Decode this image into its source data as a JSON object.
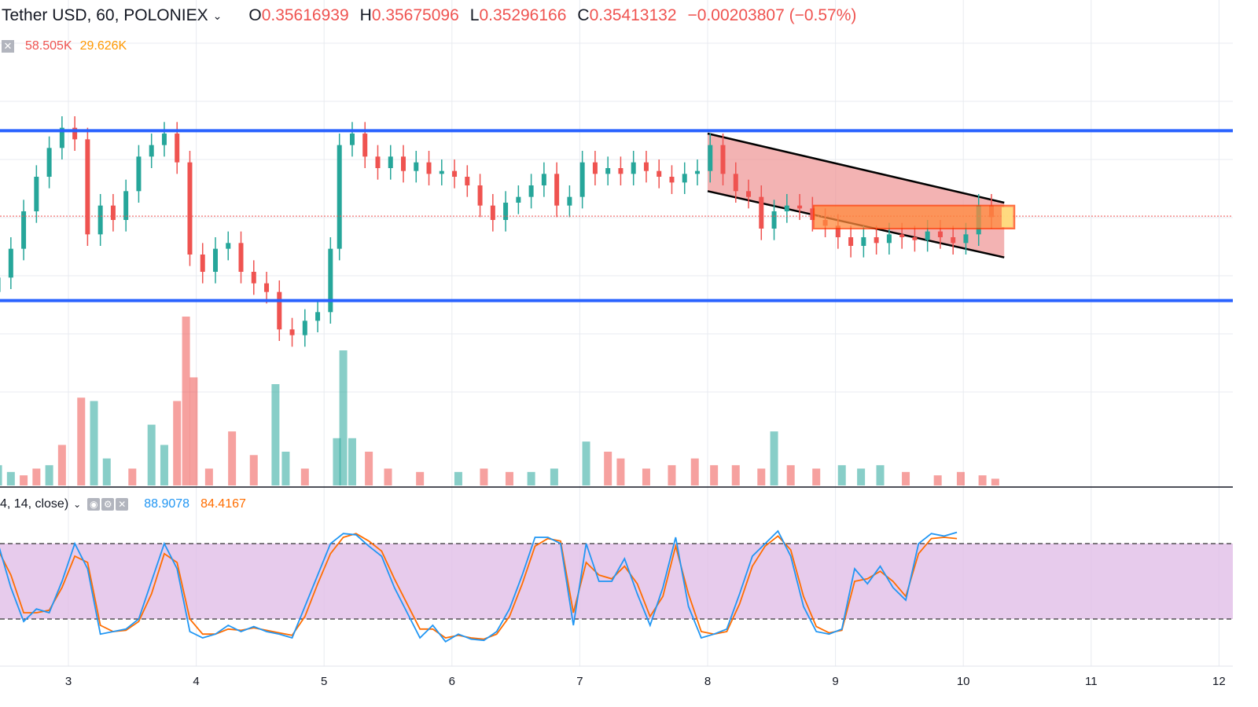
{
  "header": {
    "symbol": "Tether USD, 60, POLONIEX",
    "open_label": "O",
    "open": "0.35616939",
    "high_label": "H",
    "high": "0.35675096",
    "low_label": "L",
    "low": "0.35296166",
    "close_label": "C",
    "close": "0.35413132",
    "change": "−0.00203807 (−0.57%)"
  },
  "volume_legend": {
    "v1": "58.505K",
    "v2": "29.626K"
  },
  "indicator_legend": {
    "params": "4, 14, close)",
    "k": "88.9078",
    "d": "84.4167"
  },
  "colors": {
    "up": "#26a69a",
    "down": "#ef5350",
    "level": "#2962ff",
    "channel_fill": "#ef9a9a",
    "zone": "#ff8a3d",
    "stoch_band": "#e1bee7",
    "k_line": "#2196f3",
    "d_line": "#ff6d00"
  },
  "chart_data": {
    "type": "candlestick",
    "x_ticks": [
      "3",
      "4",
      "5",
      "6",
      "7",
      "8",
      "9",
      "10",
      "11",
      "12"
    ],
    "price_range": [
      0.348,
      0.36
    ],
    "support_level": 0.3512,
    "resistance_level": 0.3571,
    "last_close": 0.35413132,
    "stoch_levels": [
      80,
      20
    ],
    "stoch_k_last": 88.9078,
    "stoch_d_last": 84.4167,
    "candles": [
      [
        2.45,
        0.3515,
        0.352
      ],
      [
        2.55,
        0.352,
        0.353
      ],
      [
        2.65,
        0.353,
        0.3543
      ],
      [
        2.75,
        0.3543,
        0.3555
      ],
      [
        2.85,
        0.3555,
        0.3565
      ],
      [
        2.95,
        0.3565,
        0.3572
      ],
      [
        3.05,
        0.3572,
        0.3568
      ],
      [
        3.15,
        0.3568,
        0.3535
      ],
      [
        3.25,
        0.3535,
        0.3545
      ],
      [
        3.35,
        0.3545,
        0.354
      ],
      [
        3.45,
        0.354,
        0.355
      ],
      [
        3.55,
        0.355,
        0.3562
      ],
      [
        3.65,
        0.3562,
        0.3566
      ],
      [
        3.75,
        0.3566,
        0.357
      ],
      [
        3.85,
        0.357,
        0.356
      ],
      [
        3.95,
        0.356,
        0.3528
      ],
      [
        4.05,
        0.3528,
        0.3522
      ],
      [
        4.15,
        0.3522,
        0.353
      ],
      [
        4.25,
        0.353,
        0.3532
      ],
      [
        4.35,
        0.3532,
        0.3522
      ],
      [
        4.45,
        0.3522,
        0.3518
      ],
      [
        4.55,
        0.3518,
        0.3515
      ],
      [
        4.65,
        0.3515,
        0.3502
      ],
      [
        4.75,
        0.3502,
        0.35
      ],
      [
        4.85,
        0.35,
        0.3505
      ],
      [
        4.95,
        0.3505,
        0.3508
      ],
      [
        5.05,
        0.3508,
        0.353
      ],
      [
        5.12,
        0.353,
        0.3566
      ],
      [
        5.22,
        0.3566,
        0.357
      ],
      [
        5.32,
        0.357,
        0.3562
      ],
      [
        5.42,
        0.3562,
        0.3558
      ],
      [
        5.52,
        0.3558,
        0.3562
      ],
      [
        5.62,
        0.3562,
        0.3557
      ],
      [
        5.72,
        0.3557,
        0.356
      ],
      [
        5.82,
        0.356,
        0.3556
      ],
      [
        5.92,
        0.3556,
        0.3557
      ],
      [
        6.02,
        0.3557,
        0.3555
      ],
      [
        6.12,
        0.3555,
        0.3552
      ],
      [
        6.22,
        0.3552,
        0.3545
      ],
      [
        6.32,
        0.3545,
        0.354
      ],
      [
        6.42,
        0.354,
        0.3546
      ],
      [
        6.52,
        0.3546,
        0.3548
      ],
      [
        6.62,
        0.3548,
        0.3552
      ],
      [
        6.72,
        0.3552,
        0.3556
      ],
      [
        6.82,
        0.3556,
        0.3545
      ],
      [
        6.92,
        0.3545,
        0.3548
      ],
      [
        7.02,
        0.3548,
        0.356
      ],
      [
        7.12,
        0.356,
        0.3556
      ],
      [
        7.22,
        0.3556,
        0.3558
      ],
      [
        7.32,
        0.3558,
        0.3556
      ],
      [
        7.42,
        0.3556,
        0.356
      ],
      [
        7.52,
        0.356,
        0.3557
      ],
      [
        7.62,
        0.3557,
        0.3555
      ],
      [
        7.72,
        0.3555,
        0.3553
      ],
      [
        7.82,
        0.3553,
        0.3556
      ],
      [
        7.92,
        0.3556,
        0.3557
      ],
      [
        8.02,
        0.3557,
        0.3566
      ],
      [
        8.12,
        0.3566,
        0.3556
      ],
      [
        8.22,
        0.3556,
        0.355
      ],
      [
        8.32,
        0.355,
        0.3548
      ],
      [
        8.42,
        0.3548,
        0.3537
      ],
      [
        8.52,
        0.3537,
        0.3543
      ],
      [
        8.62,
        0.3543,
        0.3545
      ],
      [
        8.72,
        0.3545,
        0.3544
      ],
      [
        8.82,
        0.3544,
        0.354
      ],
      [
        8.92,
        0.354,
        0.3538
      ],
      [
        9.02,
        0.3538,
        0.3534
      ],
      [
        9.12,
        0.3534,
        0.3531
      ],
      [
        9.22,
        0.3531,
        0.3534
      ],
      [
        9.32,
        0.3534,
        0.3532
      ],
      [
        9.42,
        0.3532,
        0.3535
      ],
      [
        9.52,
        0.3535,
        0.3534
      ],
      [
        9.62,
        0.3534,
        0.3533
      ],
      [
        9.72,
        0.3533,
        0.3536
      ],
      [
        9.82,
        0.3536,
        0.3534
      ],
      [
        9.92,
        0.3534,
        0.3532
      ],
      [
        10.02,
        0.3532,
        0.3535
      ],
      [
        10.12,
        0.3535,
        0.3545
      ],
      [
        10.22,
        0.3545,
        0.3541
      ]
    ],
    "volume_bars": [
      [
        2.45,
        6,
        "up"
      ],
      [
        2.55,
        4,
        "up"
      ],
      [
        2.65,
        3,
        "down"
      ],
      [
        2.75,
        5,
        "down"
      ],
      [
        2.85,
        6,
        "up"
      ],
      [
        2.95,
        12,
        "down"
      ],
      [
        3.1,
        26,
        "down"
      ],
      [
        3.2,
        25,
        "up"
      ],
      [
        3.3,
        8,
        "up"
      ],
      [
        3.5,
        5,
        "down"
      ],
      [
        3.65,
        18,
        "up"
      ],
      [
        3.75,
        12,
        "up"
      ],
      [
        3.85,
        25,
        "down"
      ],
      [
        3.92,
        50,
        "down"
      ],
      [
        3.98,
        32,
        "down"
      ],
      [
        4.1,
        5,
        "down"
      ],
      [
        4.28,
        16,
        "down"
      ],
      [
        4.45,
        9,
        "down"
      ],
      [
        4.62,
        30,
        "up"
      ],
      [
        4.7,
        10,
        "up"
      ],
      [
        4.85,
        5,
        "down"
      ],
      [
        5.1,
        14,
        "up"
      ],
      [
        5.15,
        40,
        "up"
      ],
      [
        5.22,
        14,
        "up"
      ],
      [
        5.35,
        10,
        "down"
      ],
      [
        5.5,
        5,
        "down"
      ],
      [
        5.75,
        4,
        "down"
      ],
      [
        6.05,
        4,
        "up"
      ],
      [
        6.25,
        5,
        "down"
      ],
      [
        6.45,
        4,
        "down"
      ],
      [
        6.62,
        4,
        "up"
      ],
      [
        6.8,
        5,
        "up"
      ],
      [
        7.05,
        13,
        "up"
      ],
      [
        7.22,
        10,
        "down"
      ],
      [
        7.32,
        8,
        "down"
      ],
      [
        7.52,
        5,
        "down"
      ],
      [
        7.72,
        6,
        "down"
      ],
      [
        7.9,
        8,
        "down"
      ],
      [
        8.05,
        6,
        "down"
      ],
      [
        8.22,
        6,
        "down"
      ],
      [
        8.42,
        5,
        "down"
      ],
      [
        8.52,
        16,
        "up"
      ],
      [
        8.65,
        6,
        "down"
      ],
      [
        8.85,
        5,
        "down"
      ],
      [
        9.05,
        6,
        "up"
      ],
      [
        9.2,
        5,
        "up"
      ],
      [
        9.35,
        6,
        "up"
      ],
      [
        9.55,
        4,
        "down"
      ],
      [
        9.8,
        3,
        "down"
      ],
      [
        9.98,
        4,
        "down"
      ],
      [
        10.15,
        3,
        "down"
      ],
      [
        10.25,
        2,
        "down"
      ]
    ],
    "stoch_k": [
      [
        2.45,
        80
      ],
      [
        2.55,
        45
      ],
      [
        2.65,
        18
      ],
      [
        2.75,
        28
      ],
      [
        2.85,
        25
      ],
      [
        2.95,
        50
      ],
      [
        3.05,
        80
      ],
      [
        3.15,
        60
      ],
      [
        3.25,
        8
      ],
      [
        3.35,
        10
      ],
      [
        3.45,
        12
      ],
      [
        3.55,
        20
      ],
      [
        3.65,
        50
      ],
      [
        3.75,
        80
      ],
      [
        3.85,
        60
      ],
      [
        3.95,
        10
      ],
      [
        4.05,
        5
      ],
      [
        4.15,
        8
      ],
      [
        4.25,
        15
      ],
      [
        4.35,
        10
      ],
      [
        4.45,
        14
      ],
      [
        4.55,
        10
      ],
      [
        4.65,
        8
      ],
      [
        4.75,
        5
      ],
      [
        4.85,
        30
      ],
      [
        4.95,
        55
      ],
      [
        5.05,
        80
      ],
      [
        5.15,
        88
      ],
      [
        5.25,
        87
      ],
      [
        5.35,
        78
      ],
      [
        5.45,
        70
      ],
      [
        5.55,
        45
      ],
      [
        5.65,
        25
      ],
      [
        5.75,
        5
      ],
      [
        5.85,
        15
      ],
      [
        5.95,
        2
      ],
      [
        6.05,
        8
      ],
      [
        6.15,
        4
      ],
      [
        6.25,
        3
      ],
      [
        6.35,
        10
      ],
      [
        6.45,
        28
      ],
      [
        6.55,
        55
      ],
      [
        6.65,
        85
      ],
      [
        6.75,
        85
      ],
      [
        6.85,
        80
      ],
      [
        6.95,
        15
      ],
      [
        7.05,
        80
      ],
      [
        7.15,
        50
      ],
      [
        7.25,
        50
      ],
      [
        7.35,
        68
      ],
      [
        7.45,
        40
      ],
      [
        7.55,
        15
      ],
      [
        7.65,
        45
      ],
      [
        7.75,
        85
      ],
      [
        7.85,
        30
      ],
      [
        7.95,
        5
      ],
      [
        8.05,
        8
      ],
      [
        8.15,
        12
      ],
      [
        8.25,
        40
      ],
      [
        8.35,
        70
      ],
      [
        8.45,
        80
      ],
      [
        8.55,
        90
      ],
      [
        8.65,
        70
      ],
      [
        8.75,
        30
      ],
      [
        8.85,
        10
      ],
      [
        8.95,
        8
      ],
      [
        9.05,
        12
      ],
      [
        9.15,
        60
      ],
      [
        9.25,
        48
      ],
      [
        9.35,
        62
      ],
      [
        9.45,
        45
      ],
      [
        9.55,
        35
      ],
      [
        9.65,
        80
      ],
      [
        9.75,
        88
      ],
      [
        9.85,
        86
      ],
      [
        9.95,
        89
      ]
    ],
    "stoch_d": [
      [
        2.45,
        75
      ],
      [
        2.55,
        55
      ],
      [
        2.65,
        25
      ],
      [
        2.75,
        25
      ],
      [
        2.85,
        27
      ],
      [
        2.95,
        45
      ],
      [
        3.05,
        70
      ],
      [
        3.15,
        65
      ],
      [
        3.25,
        15
      ],
      [
        3.35,
        10
      ],
      [
        3.45,
        11
      ],
      [
        3.55,
        18
      ],
      [
        3.65,
        40
      ],
      [
        3.75,
        72
      ],
      [
        3.85,
        65
      ],
      [
        3.95,
        20
      ],
      [
        4.05,
        8
      ],
      [
        4.15,
        8
      ],
      [
        4.25,
        12
      ],
      [
        4.35,
        11
      ],
      [
        4.45,
        13
      ],
      [
        4.55,
        11
      ],
      [
        4.65,
        9
      ],
      [
        4.75,
        7
      ],
      [
        4.85,
        22
      ],
      [
        4.95,
        48
      ],
      [
        5.05,
        72
      ],
      [
        5.15,
        85
      ],
      [
        5.25,
        88
      ],
      [
        5.35,
        82
      ],
      [
        5.45,
        74
      ],
      [
        5.55,
        52
      ],
      [
        5.65,
        32
      ],
      [
        5.75,
        12
      ],
      [
        5.85,
        12
      ],
      [
        5.95,
        5
      ],
      [
        6.05,
        7
      ],
      [
        6.15,
        5
      ],
      [
        6.25,
        4
      ],
      [
        6.35,
        8
      ],
      [
        6.45,
        22
      ],
      [
        6.55,
        48
      ],
      [
        6.65,
        78
      ],
      [
        6.75,
        84
      ],
      [
        6.85,
        82
      ],
      [
        6.95,
        25
      ],
      [
        7.05,
        65
      ],
      [
        7.15,
        55
      ],
      [
        7.25,
        52
      ],
      [
        7.35,
        62
      ],
      [
        7.45,
        48
      ],
      [
        7.55,
        22
      ],
      [
        7.65,
        38
      ],
      [
        7.75,
        78
      ],
      [
        7.85,
        40
      ],
      [
        7.95,
        10
      ],
      [
        8.05,
        8
      ],
      [
        8.15,
        10
      ],
      [
        8.25,
        32
      ],
      [
        8.35,
        62
      ],
      [
        8.45,
        78
      ],
      [
        8.55,
        86
      ],
      [
        8.65,
        75
      ],
      [
        8.75,
        38
      ],
      [
        8.85,
        14
      ],
      [
        8.95,
        9
      ],
      [
        9.05,
        11
      ],
      [
        9.15,
        50
      ],
      [
        9.25,
        52
      ],
      [
        9.35,
        58
      ],
      [
        9.45,
        50
      ],
      [
        9.55,
        38
      ],
      [
        9.65,
        72
      ],
      [
        9.75,
        84
      ],
      [
        9.85,
        85
      ],
      [
        9.95,
        84
      ]
    ]
  }
}
